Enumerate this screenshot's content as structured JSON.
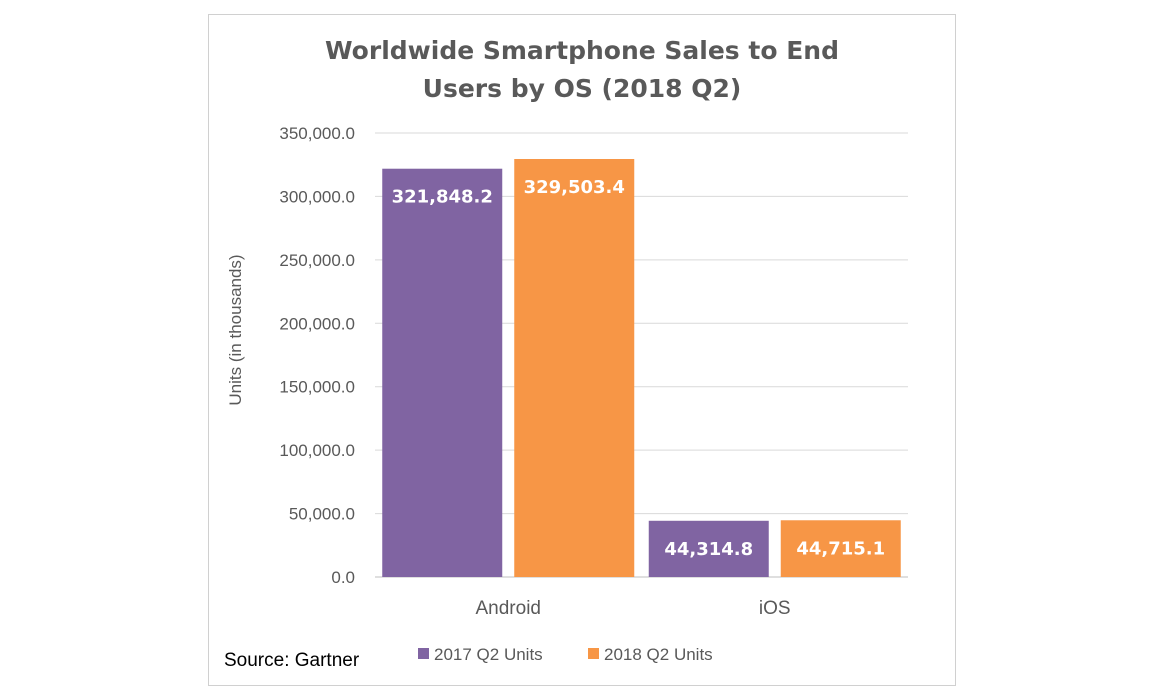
{
  "chart_data": {
    "type": "bar",
    "title_lines": [
      "Worldwide Smartphone Sales to End",
      "Users by OS (2018 Q2)"
    ],
    "ylabel": "Units (in thousands)",
    "categories": [
      "Android",
      "iOS"
    ],
    "series": [
      {
        "name": "2017 Q2 Units",
        "color": "#8064a2",
        "values": [
          321848.2,
          44314.8
        ],
        "labels": [
          "321,848.2",
          "44,314.8"
        ]
      },
      {
        "name": "2018 Q2 Units",
        "color": "#f79646",
        "values": [
          329503.4,
          44715.1
        ],
        "labels": [
          "329,503.4",
          "44,715.1"
        ]
      }
    ],
    "ylim": [
      0,
      350000
    ],
    "yticks": [
      0,
      50000,
      100000,
      150000,
      200000,
      250000,
      300000,
      350000
    ],
    "ytick_labels": [
      "0.0",
      "50,000.0",
      "100,000.0",
      "150,000.0",
      "200,000.0",
      "250,000.0",
      "300,000.0",
      "350,000.0"
    ],
    "grid": true,
    "legend_position": "bottom"
  },
  "source": "Source: Gartner"
}
